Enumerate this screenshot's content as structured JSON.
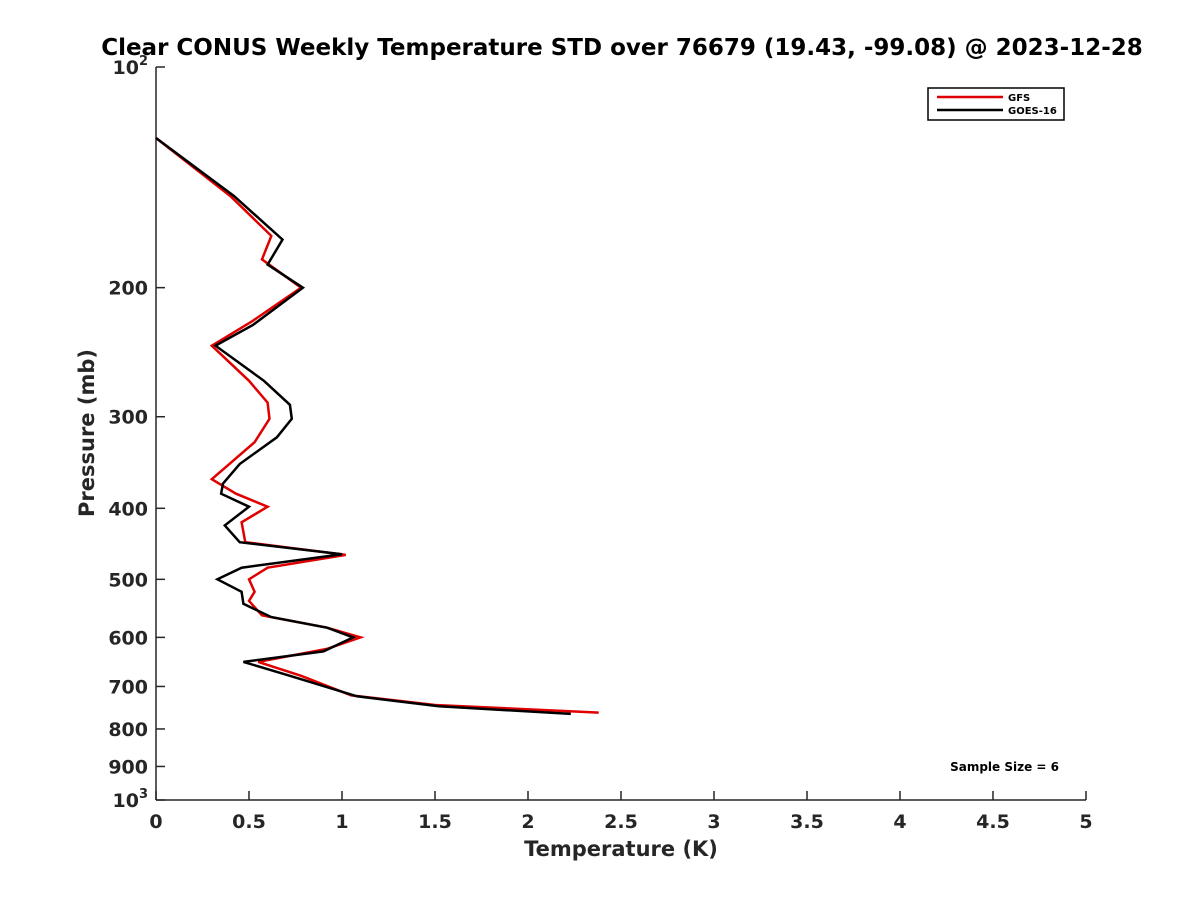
{
  "chart_data": {
    "type": "line",
    "title": "Clear CONUS Weekly Temperature STD over 76679 (19.43, -99.08) @ 2023-12-28",
    "xlabel": "Temperature (K)",
    "ylabel": "Pressure (mb)",
    "xlim": [
      0,
      5
    ],
    "ylim": [
      100,
      1000
    ],
    "y_scale": "log",
    "y_reversed": true,
    "grid": false,
    "legend_position": "top-right",
    "x_ticks": [
      0,
      0.5,
      1,
      1.5,
      2,
      2.5,
      3,
      3.5,
      4,
      4.5,
      5
    ],
    "x_tick_labels": [
      "0",
      "0.5",
      "1",
      "1.5",
      "2",
      "2.5",
      "3",
      "3.5",
      "4",
      "4.5",
      "5"
    ],
    "y_ticks": [
      100,
      200,
      300,
      400,
      500,
      600,
      700,
      800,
      900,
      1000
    ],
    "y_tick_labels": [
      {
        "base": "10",
        "exp": "2"
      },
      {
        "base": "200",
        "exp": ""
      },
      {
        "base": "300",
        "exp": ""
      },
      {
        "base": "400",
        "exp": ""
      },
      {
        "base": "500",
        "exp": ""
      },
      {
        "base": "600",
        "exp": ""
      },
      {
        "base": "700",
        "exp": ""
      },
      {
        "base": "800",
        "exp": ""
      },
      {
        "base": "900",
        "exp": ""
      },
      {
        "base": "10",
        "exp": "3"
      }
    ],
    "series": [
      {
        "name": "GFS",
        "color": "#e00000",
        "points": [
          [
            0.0,
            125
          ],
          [
            0.4,
            150
          ],
          [
            0.62,
            170
          ],
          [
            0.57,
            183
          ],
          [
            0.78,
            200
          ],
          [
            0.52,
            222
          ],
          [
            0.3,
            240
          ],
          [
            0.5,
            268
          ],
          [
            0.6,
            287
          ],
          [
            0.61,
            302
          ],
          [
            0.53,
            325
          ],
          [
            0.3,
            365
          ],
          [
            0.43,
            382
          ],
          [
            0.6,
            398
          ],
          [
            0.46,
            418
          ],
          [
            0.48,
            445
          ],
          [
            1.02,
            463
          ],
          [
            0.6,
            482
          ],
          [
            0.5,
            500
          ],
          [
            0.53,
            520
          ],
          [
            0.5,
            535
          ],
          [
            0.57,
            560
          ],
          [
            0.92,
            582
          ],
          [
            1.1,
            600
          ],
          [
            0.92,
            622
          ],
          [
            0.55,
            648
          ],
          [
            0.78,
            677
          ],
          [
            1.05,
            720
          ],
          [
            1.5,
            742
          ],
          [
            2.38,
            760
          ]
        ]
      },
      {
        "name": "GOES-16",
        "color": "#000000",
        "points": [
          [
            0.0,
            125
          ],
          [
            0.42,
            150
          ],
          [
            0.68,
            172
          ],
          [
            0.6,
            186
          ],
          [
            0.79,
            200
          ],
          [
            0.52,
            225
          ],
          [
            0.32,
            240
          ],
          [
            0.58,
            268
          ],
          [
            0.72,
            289
          ],
          [
            0.73,
            302
          ],
          [
            0.65,
            320
          ],
          [
            0.45,
            348
          ],
          [
            0.36,
            370
          ],
          [
            0.35,
            382
          ],
          [
            0.5,
            398
          ],
          [
            0.37,
            422
          ],
          [
            0.45,
            445
          ],
          [
            1.0,
            462
          ],
          [
            0.46,
            482
          ],
          [
            0.33,
            500
          ],
          [
            0.46,
            520
          ],
          [
            0.47,
            540
          ],
          [
            0.62,
            563
          ],
          [
            0.92,
            582
          ],
          [
            1.06,
            600
          ],
          [
            0.9,
            627
          ],
          [
            0.47,
            648
          ],
          [
            0.72,
            677
          ],
          [
            1.08,
            722
          ],
          [
            1.52,
            745
          ],
          [
            2.23,
            763
          ]
        ]
      }
    ],
    "annotations": [
      "Sample Size = 6"
    ]
  }
}
